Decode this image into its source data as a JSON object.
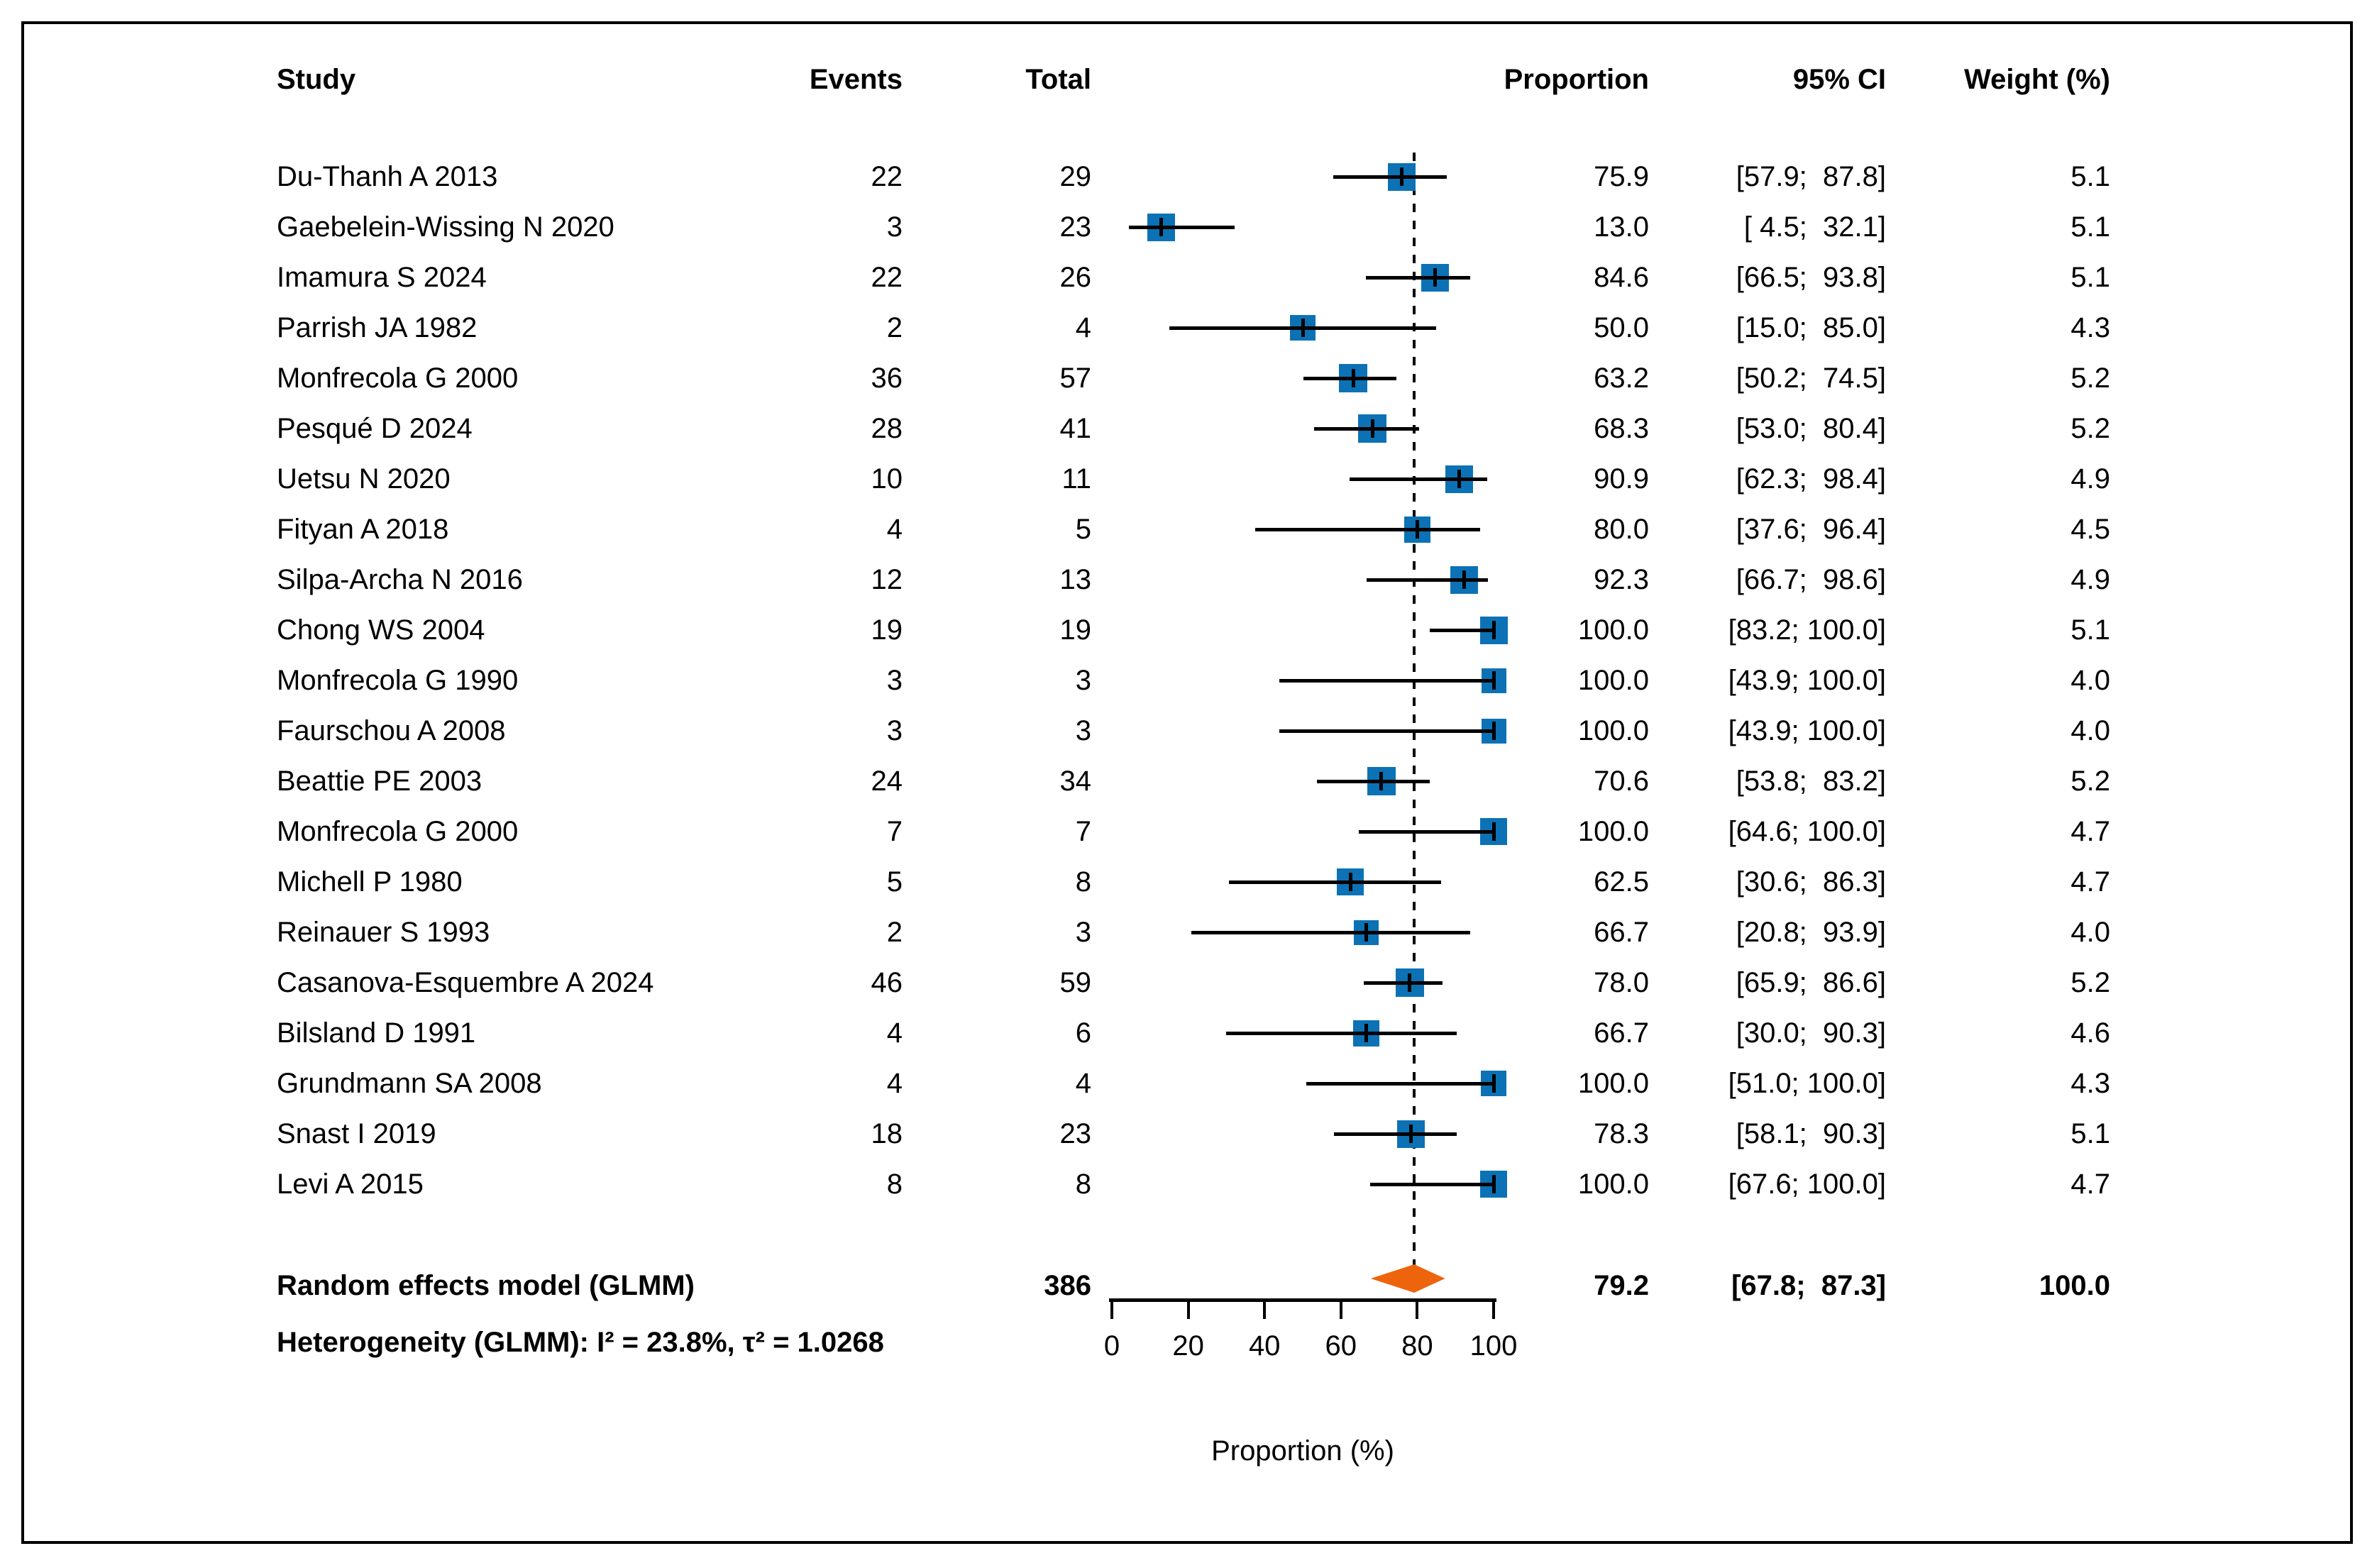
{
  "chart_data": {
    "type": "forest",
    "columns": {
      "study": "Study",
      "events": "Events",
      "total": "Total",
      "proportion": "Proportion",
      "ci": "95% CI",
      "weight": "Weight (%)"
    },
    "axis": {
      "min": 0,
      "max": 100,
      "ticks": [
        0,
        20,
        40,
        60,
        80,
        100
      ],
      "tick_labels": [
        "0",
        "20",
        "40",
        "60",
        "80",
        "100"
      ],
      "label": "Proportion (%)"
    },
    "ref_line_value": 79.2,
    "studies": [
      {
        "study": "Du-Thanh A 2013",
        "events": "22",
        "total": "29",
        "proportion": 75.9,
        "prop_text": "75.9",
        "ci_lo": 57.9,
        "ci_hi": 87.8,
        "ci_text": "[57.9;  87.8]",
        "weight": 5.1,
        "weight_text": "5.1"
      },
      {
        "study": "Gaebelein-Wissing N 2020",
        "events": "3",
        "total": "23",
        "proportion": 13.0,
        "prop_text": "13.0",
        "ci_lo": 4.5,
        "ci_hi": 32.1,
        "ci_text": "[ 4.5;  32.1]",
        "weight": 5.1,
        "weight_text": "5.1"
      },
      {
        "study": "Imamura S 2024",
        "events": "22",
        "total": "26",
        "proportion": 84.6,
        "prop_text": "84.6",
        "ci_lo": 66.5,
        "ci_hi": 93.8,
        "ci_text": "[66.5;  93.8]",
        "weight": 5.1,
        "weight_text": "5.1"
      },
      {
        "study": "Parrish JA 1982",
        "events": "2",
        "total": "4",
        "proportion": 50.0,
        "prop_text": "50.0",
        "ci_lo": 15.0,
        "ci_hi": 85.0,
        "ci_text": "[15.0;  85.0]",
        "weight": 4.3,
        "weight_text": "4.3"
      },
      {
        "study": "Monfrecola G 2000",
        "events": "36",
        "total": "57",
        "proportion": 63.2,
        "prop_text": "63.2",
        "ci_lo": 50.2,
        "ci_hi": 74.5,
        "ci_text": "[50.2;  74.5]",
        "weight": 5.2,
        "weight_text": "5.2"
      },
      {
        "study": "Pesqué D 2024",
        "events": "28",
        "total": "41",
        "proportion": 68.3,
        "prop_text": "68.3",
        "ci_lo": 53.0,
        "ci_hi": 80.4,
        "ci_text": "[53.0;  80.4]",
        "weight": 5.2,
        "weight_text": "5.2"
      },
      {
        "study": "Uetsu N 2020",
        "events": "10",
        "total": "11",
        "proportion": 90.9,
        "prop_text": "90.9",
        "ci_lo": 62.3,
        "ci_hi": 98.4,
        "ci_text": "[62.3;  98.4]",
        "weight": 4.9,
        "weight_text": "4.9"
      },
      {
        "study": "Fityan A 2018",
        "events": "4",
        "total": "5",
        "proportion": 80.0,
        "prop_text": "80.0",
        "ci_lo": 37.6,
        "ci_hi": 96.4,
        "ci_text": "[37.6;  96.4]",
        "weight": 4.5,
        "weight_text": "4.5"
      },
      {
        "study": "Silpa-Archa N 2016",
        "events": "12",
        "total": "13",
        "proportion": 92.3,
        "prop_text": "92.3",
        "ci_lo": 66.7,
        "ci_hi": 98.6,
        "ci_text": "[66.7;  98.6]",
        "weight": 4.9,
        "weight_text": "4.9"
      },
      {
        "study": "Chong WS 2004",
        "events": "19",
        "total": "19",
        "proportion": 100.0,
        "prop_text": "100.0",
        "ci_lo": 83.2,
        "ci_hi": 100.0,
        "ci_text": "[83.2; 100.0]",
        "weight": 5.1,
        "weight_text": "5.1"
      },
      {
        "study": "Monfrecola G 1990",
        "events": "3",
        "total": "3",
        "proportion": 100.0,
        "prop_text": "100.0",
        "ci_lo": 43.9,
        "ci_hi": 100.0,
        "ci_text": "[43.9; 100.0]",
        "weight": 4.0,
        "weight_text": "4.0"
      },
      {
        "study": "Faurschou A 2008",
        "events": "3",
        "total": "3",
        "proportion": 100.0,
        "prop_text": "100.0",
        "ci_lo": 43.9,
        "ci_hi": 100.0,
        "ci_text": "[43.9; 100.0]",
        "weight": 4.0,
        "weight_text": "4.0"
      },
      {
        "study": "Beattie PE 2003",
        "events": "24",
        "total": "34",
        "proportion": 70.6,
        "prop_text": "70.6",
        "ci_lo": 53.8,
        "ci_hi": 83.2,
        "ci_text": "[53.8;  83.2]",
        "weight": 5.2,
        "weight_text": "5.2"
      },
      {
        "study": "Monfrecola G 2000",
        "events": "7",
        "total": "7",
        "proportion": 100.0,
        "prop_text": "100.0",
        "ci_lo": 64.6,
        "ci_hi": 100.0,
        "ci_text": "[64.6; 100.0]",
        "weight": 4.7,
        "weight_text": "4.7"
      },
      {
        "study": "Michell P 1980",
        "events": "5",
        "total": "8",
        "proportion": 62.5,
        "prop_text": "62.5",
        "ci_lo": 30.6,
        "ci_hi": 86.3,
        "ci_text": "[30.6;  86.3]",
        "weight": 4.7,
        "weight_text": "4.7"
      },
      {
        "study": "Reinauer S 1993",
        "events": "2",
        "total": "3",
        "proportion": 66.7,
        "prop_text": "66.7",
        "ci_lo": 20.8,
        "ci_hi": 93.9,
        "ci_text": "[20.8;  93.9]",
        "weight": 4.0,
        "weight_text": "4.0"
      },
      {
        "study": "Casanova-Esquembre A 2024",
        "events": "46",
        "total": "59",
        "proportion": 78.0,
        "prop_text": "78.0",
        "ci_lo": 65.9,
        "ci_hi": 86.6,
        "ci_text": "[65.9;  86.6]",
        "weight": 5.2,
        "weight_text": "5.2"
      },
      {
        "study": "Bilsland D 1991",
        "events": "4",
        "total": "6",
        "proportion": 66.7,
        "prop_text": "66.7",
        "ci_lo": 30.0,
        "ci_hi": 90.3,
        "ci_text": "[30.0;  90.3]",
        "weight": 4.6,
        "weight_text": "4.6"
      },
      {
        "study": "Grundmann SA 2008",
        "events": "4",
        "total": "4",
        "proportion": 100.0,
        "prop_text": "100.0",
        "ci_lo": 51.0,
        "ci_hi": 100.0,
        "ci_text": "[51.0; 100.0]",
        "weight": 4.3,
        "weight_text": "4.3"
      },
      {
        "study": "Snast I 2019",
        "events": "18",
        "total": "23",
        "proportion": 78.3,
        "prop_text": "78.3",
        "ci_lo": 58.1,
        "ci_hi": 90.3,
        "ci_text": "[58.1;  90.3]",
        "weight": 5.1,
        "weight_text": "5.1"
      },
      {
        "study": "Levi A 2015",
        "events": "8",
        "total": "8",
        "proportion": 100.0,
        "prop_text": "100.0",
        "ci_lo": 67.6,
        "ci_hi": 100.0,
        "ci_text": "[67.6; 100.0]",
        "weight": 4.7,
        "weight_text": "4.7"
      }
    ],
    "summary": {
      "label": "Random effects model (GLMM)",
      "total": "386",
      "proportion": 79.2,
      "prop_text": "79.2",
      "ci_lo": 67.8,
      "ci_hi": 87.3,
      "ci_text": "[67.8;  87.3]",
      "weight_text": "100.0"
    },
    "heterogeneity": "Heterogeneity (GLMM): I² = 23.8%, τ² = 1.0268",
    "colors": {
      "square": "#0C72B5",
      "diamond": "#EE640D",
      "line": "#000000",
      "ref_line": "#000000"
    }
  }
}
